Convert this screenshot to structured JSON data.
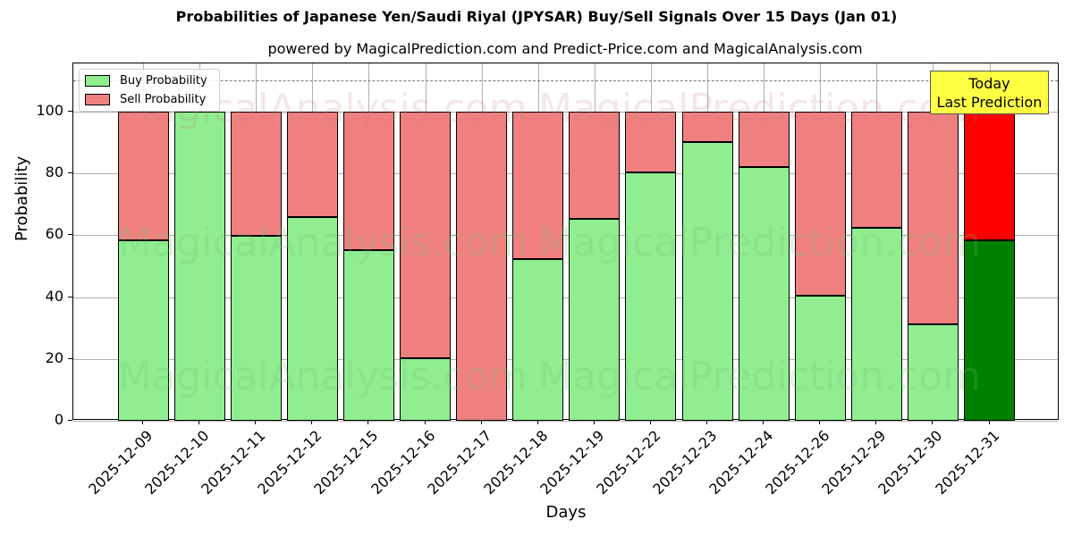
{
  "chart_data": {
    "type": "bar",
    "stacked": true,
    "title": "Probabilities of Japanese Yen/Saudi Riyal (JPYSAR) Buy/Sell Signals Over 15 Days (Jan 01)",
    "subtitle": "powered by MagicalPrediction.com and Predict-Price.com and MagicalAnalysis.com",
    "xlabel": "Days",
    "ylabel": "Probability",
    "ylim": [
      0,
      115
    ],
    "yticks": [
      0,
      20,
      40,
      60,
      80,
      100
    ],
    "grid": true,
    "reference_line": 110,
    "legend_position": "upper left",
    "categories": [
      "2025-12-09",
      "2025-12-10",
      "2025-12-11",
      "2025-12-12",
      "2025-12-15",
      "2025-12-16",
      "2025-12-17",
      "2025-12-18",
      "2025-12-19",
      "2025-12-22",
      "2025-12-23",
      "2025-12-24",
      "2025-12-26",
      "2025-12-29",
      "2025-12-30",
      "2025-12-31"
    ],
    "series": [
      {
        "name": "Buy Probability",
        "color": "#90ee90",
        "values": [
          58.4,
          100,
          59.7,
          65.9,
          55.2,
          20.2,
          0,
          52.3,
          65.3,
          80.3,
          90.2,
          82.1,
          40.5,
          62.4,
          31.2,
          58.4
        ]
      },
      {
        "name": "Sell Probability",
        "color": "#f08080",
        "values": [
          41.6,
          0,
          40.3,
          34.1,
          44.8,
          79.8,
          100,
          47.7,
          34.7,
          19.7,
          9.8,
          17.9,
          59.5,
          37.6,
          68.8,
          41.6
        ]
      }
    ],
    "highlight": {
      "index": 15,
      "buy_color": "#008000",
      "sell_color": "#ff0000"
    },
    "annotation": "Today\nLast Prediction"
  },
  "header": {
    "title": "Probabilities of Japanese Yen/Saudi Riyal (JPYSAR) Buy/Sell Signals Over 15 Days (Jan 01)",
    "subtitle": "powered by MagicalPrediction.com and Predict-Price.com and MagicalAnalysis.com"
  },
  "axes": {
    "xlabel": "Days",
    "ylabel": "Probability",
    "yticks": [
      "0",
      "20",
      "40",
      "60",
      "80",
      "100"
    ]
  },
  "legend": {
    "buy": "Buy Probability",
    "sell": "Sell Probability"
  },
  "annotation": {
    "line1": "Today",
    "line2": "Last Prediction"
  },
  "watermarks": [
    "MagicalAnalysis.com",
    "MagicalPrediction.com"
  ]
}
